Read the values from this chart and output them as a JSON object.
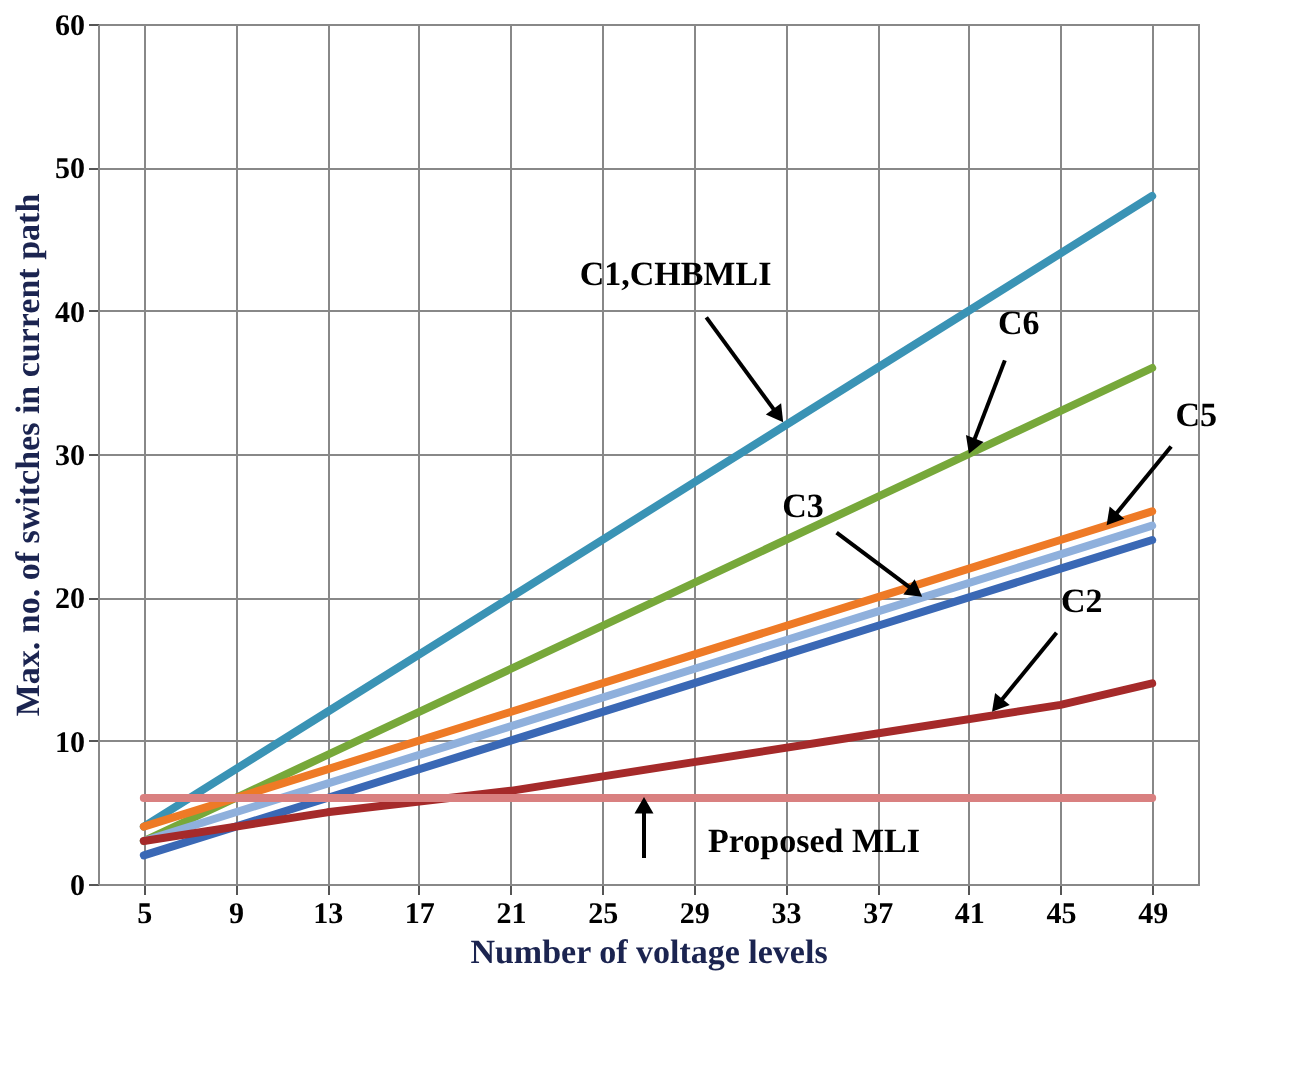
{
  "chart_data": {
    "type": "line",
    "xlabel": "Number of voltage levels",
    "ylabel": "Max. no. of switches in current path",
    "xlim": [
      3,
      51
    ],
    "xticks": [
      5,
      9,
      13,
      17,
      21,
      25,
      29,
      33,
      37,
      41,
      45,
      49
    ],
    "ylim": [
      0,
      60
    ],
    "yticks": [
      0,
      10,
      20,
      30,
      40,
      50,
      60
    ],
    "grid": true,
    "legend": false,
    "marker": "none",
    "line_style": "solid",
    "x": [
      5,
      13,
      21,
      29,
      37,
      45,
      49
    ],
    "series": [
      {
        "color": "#3a93b5",
        "values": [
          4,
          12,
          20,
          28,
          36,
          44,
          48
        ]
      },
      {
        "color": "#77a83a",
        "values": [
          3,
          9,
          15,
          21,
          27,
          33,
          36
        ]
      },
      {
        "color": "#ee7a26",
        "values": [
          4,
          8,
          12,
          16,
          20,
          24,
          26
        ]
      },
      {
        "color": "#8fb0dc",
        "values": [
          3,
          7,
          11,
          15,
          19,
          23,
          25
        ]
      },
      {
        "color": "#3a68b5",
        "values": [
          2,
          6,
          10,
          14,
          18,
          22,
          24
        ]
      },
      {
        "color": "#a52a2a",
        "values": [
          3,
          5,
          6.5,
          8.5,
          10.5,
          12.5,
          14
        ]
      },
      {
        "color": "#d98080",
        "values": [
          6,
          6,
          6,
          6,
          6,
          6,
          6
        ]
      }
    ],
    "annotations": [
      {
        "text": "C1,CHBMLI",
        "x": 33,
        "y": 32
      },
      {
        "text": "C6",
        "x": 41,
        "y": 30
      },
      {
        "text": "C5",
        "x": 47,
        "y": 25
      },
      {
        "text": "C3",
        "x": 39,
        "y": 20
      },
      {
        "text": "C2",
        "x": 42,
        "y": 12
      },
      {
        "text": "Proposed MLI",
        "x": 27,
        "y": 6
      }
    ]
  }
}
